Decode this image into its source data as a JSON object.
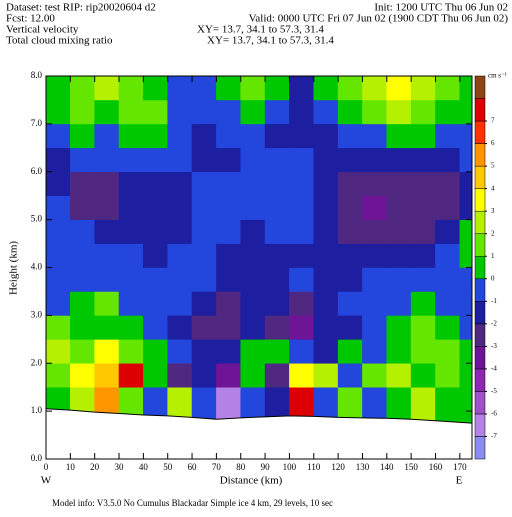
{
  "header": {
    "dataset": "Dataset: test  RIP: rip20020604 d2",
    "init": "Init: 1200 UTC Thu 06 Jun 02",
    "fcst": "Fcst:    12.00",
    "valid": "Valid: 0000 UTC Fri 07 Jun 02 (1900 CDT Thu 06 Jun 02)",
    "field1": "Vertical velocity",
    "xy1": "XY=  13.7, 34.1 to  57.3, 31.4",
    "field2": "Total cloud mixing ratio",
    "xy2": "XY=  13.7, 34.1 to  57.3, 31.4",
    "left_end": "W",
    "right_end": "E",
    "footer": "Model info: V3.5.0 No Cumulus Blackadar  Simple ice    4 km,  29 levels,   10 sec"
  },
  "chart_data": {
    "type": "contour",
    "xlabel": "Distance (km)",
    "ylabel": "Height (km)",
    "xlim": [
      0,
      175
    ],
    "ylim": [
      0,
      8
    ],
    "xticks": [
      0,
      10,
      20,
      30,
      40,
      50,
      60,
      70,
      80,
      90,
      100,
      110,
      120,
      130,
      140,
      150,
      160,
      170
    ],
    "yticks": [
      {
        "value": 0,
        "label": "0.0"
      },
      {
        "value": 1,
        "label": "1.0"
      },
      {
        "value": 2,
        "label": "2.0"
      },
      {
        "value": 3,
        "label": "3.0"
      },
      {
        "value": 4,
        "label": "4.0"
      },
      {
        "value": 5,
        "label": "5.0"
      },
      {
        "value": 6,
        "label": "6.0"
      },
      {
        "value": 7,
        "label": "7.0"
      },
      {
        "value": 8,
        "label": "8.0"
      }
    ],
    "x": [
      5,
      15,
      25,
      35,
      45,
      55,
      65,
      75,
      85,
      95,
      105,
      115,
      125,
      135,
      145,
      155,
      165,
      175
    ],
    "y": [
      1.25,
      1.75,
      2.25,
      2.75,
      3.25,
      3.75,
      4.25,
      4.75,
      5.25,
      5.75,
      6.25,
      6.75,
      7.25,
      7.75
    ],
    "z": [
      [
        0.5,
        2.5,
        5.5,
        1.5,
        -0.5,
        2.5,
        -0.5,
        -6.5,
        -0.5,
        -1.5,
        7.5,
        -0.5,
        1.5,
        -0.5,
        0.5,
        2.5,
        0.5,
        0.5
      ],
      [
        1.5,
        3.5,
        4.5,
        7.5,
        0.5,
        -2.5,
        -1.5,
        -3.5,
        0.5,
        -2.5,
        3.5,
        2.5,
        -0.5,
        1.5,
        2.5,
        0.5,
        1.5,
        0.5
      ],
      [
        2.5,
        1.5,
        3.5,
        1.5,
        0.5,
        -0.5,
        -1.5,
        -1.5,
        0.5,
        0.5,
        -0.5,
        -1.5,
        0.5,
        -0.5,
        0.5,
        1.5,
        1.5,
        0.5
      ],
      [
        1.5,
        0.5,
        0.5,
        0.5,
        -0.5,
        -1.5,
        -2.5,
        -2.5,
        -1.5,
        -2.5,
        -3.5,
        -1.5,
        -1.5,
        -0.5,
        0.5,
        1.5,
        0.5,
        -0.5
      ],
      [
        -0.5,
        0.5,
        1.5,
        -0.5,
        -0.5,
        -0.5,
        -1.5,
        -2.5,
        -1.5,
        -1.5,
        -2.5,
        -1.5,
        -0.5,
        -0.5,
        -0.5,
        0.5,
        -0.5,
        -0.5
      ],
      [
        -0.5,
        -0.5,
        -0.5,
        -0.5,
        -0.5,
        -0.5,
        -0.5,
        -1.5,
        -1.5,
        -1.5,
        -0.5,
        -1.5,
        -1.5,
        -0.5,
        -0.5,
        -0.5,
        -0.5,
        -0.5
      ],
      [
        -0.5,
        -0.5,
        -0.5,
        -0.5,
        -1.5,
        -0.5,
        -0.5,
        -1.5,
        -1.5,
        -1.5,
        -1.5,
        -1.5,
        -1.5,
        -1.5,
        -1.5,
        -1.5,
        -0.5,
        0.5
      ],
      [
        -0.5,
        -0.5,
        -1.5,
        -1.5,
        -1.5,
        -1.5,
        -0.5,
        -0.5,
        -1.5,
        -0.5,
        -0.5,
        -1.5,
        -2.5,
        -2.5,
        -2.5,
        -2.5,
        -1.5,
        0.5
      ],
      [
        -0.5,
        -2.5,
        -2.5,
        -1.5,
        -1.5,
        -1.5,
        -0.5,
        -0.5,
        -0.5,
        -0.5,
        -0.5,
        -1.5,
        -2.5,
        -3.5,
        -2.5,
        -2.5,
        -2.5,
        -1.5
      ],
      [
        -1.5,
        -2.5,
        -2.5,
        -1.5,
        -1.5,
        -1.5,
        -0.5,
        -0.5,
        -0.5,
        -0.5,
        -0.5,
        -1.5,
        -2.5,
        -2.5,
        -2.5,
        -2.5,
        -2.5,
        -1.5
      ],
      [
        -1.5,
        -0.5,
        -0.5,
        -0.5,
        -0.5,
        -0.5,
        -1.5,
        -1.5,
        -0.5,
        -0.5,
        -0.5,
        -1.5,
        -1.5,
        -1.5,
        -1.5,
        -1.5,
        -1.5,
        -0.5
      ],
      [
        -0.5,
        0.5,
        -0.5,
        0.5,
        0.5,
        -0.5,
        -1.5,
        -0.5,
        -0.5,
        -1.5,
        -1.5,
        -1.5,
        -0.5,
        -0.5,
        0.5,
        0.5,
        -0.5,
        -0.5
      ],
      [
        0.5,
        1.5,
        0.5,
        1.5,
        1.5,
        -0.5,
        -0.5,
        -0.5,
        0.5,
        -0.5,
        -1.5,
        -0.5,
        0.5,
        1.5,
        2.5,
        1.5,
        0.5,
        0.5
      ],
      [
        0.5,
        1.5,
        2.5,
        1.5,
        0.5,
        -0.5,
        -0.5,
        0.5,
        1.5,
        0.5,
        -1.5,
        0.5,
        1.5,
        2.5,
        3.5,
        2.5,
        1.5,
        0.5
      ]
    ],
    "terrain": {
      "x": [
        0,
        10,
        20,
        30,
        40,
        50,
        60,
        70,
        80,
        90,
        100,
        110,
        120,
        130,
        140,
        150,
        160,
        175
      ],
      "y": [
        1.05,
        1.02,
        0.98,
        0.95,
        0.92,
        0.9,
        0.87,
        0.83,
        0.86,
        0.88,
        0.9,
        0.89,
        0.87,
        0.86,
        0.85,
        0.83,
        0.8,
        0.75
      ]
    },
    "colorbar": {
      "label": "cm s⁻¹",
      "clim": [
        -8,
        9
      ],
      "ticks": [
        -7,
        -6,
        -5,
        -4,
        -3,
        -2,
        -1,
        0,
        1,
        2,
        3,
        4,
        5,
        6,
        7
      ],
      "colors": [
        "#8c8cf0",
        "#b482e6",
        "#a050c8",
        "#8c28b4",
        "#6e1496",
        "#502882",
        "#1e1ea0",
        "#2346dc",
        "#00c800",
        "#64e600",
        "#b4f000",
        "#ffff00",
        "#ffc800",
        "#ff9600",
        "#ff3200",
        "#dc0000",
        "#8c4614"
      ]
    }
  }
}
